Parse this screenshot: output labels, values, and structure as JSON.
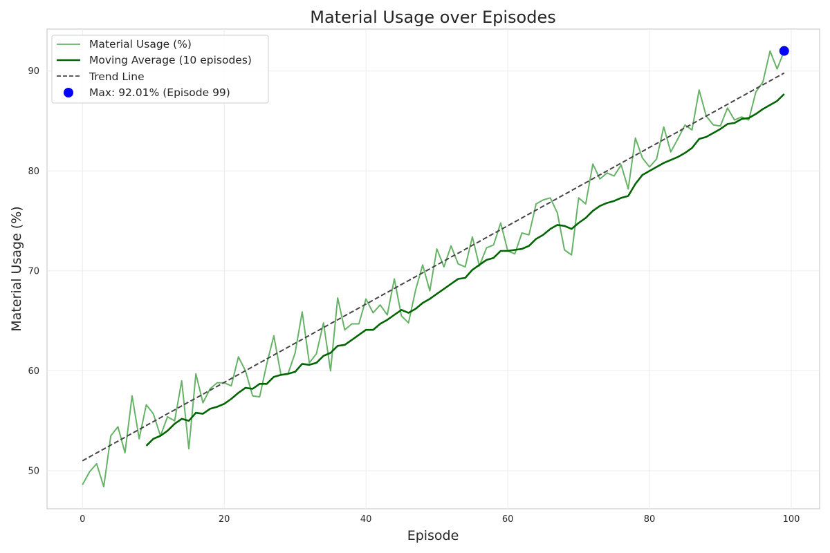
{
  "chart_data": {
    "type": "line",
    "title": "Material Usage over Episodes",
    "xlabel": "Episode",
    "ylabel": "Material Usage (%)",
    "xlim": [
      -5,
      104
    ],
    "ylim": [
      46.2,
      94.2
    ],
    "xticks": [
      0,
      20,
      40,
      60,
      80,
      100
    ],
    "yticks": [
      50,
      60,
      70,
      80,
      90
    ],
    "grid": true,
    "legend_position": "top-left",
    "colors": {
      "raw": "#66b266",
      "moving_average": "#006400",
      "trend": "#444444",
      "max_marker": "#0000ff"
    },
    "series": [
      {
        "name": "Material Usage (%)",
        "x_start": 0,
        "values": [
          48.6,
          49.9,
          50.7,
          48.4,
          53.5,
          54.4,
          51.8,
          57.5,
          53.2,
          56.6,
          55.7,
          53.5,
          55.4,
          55.0,
          59.0,
          52.2,
          59.7,
          56.8,
          58.2,
          58.8,
          58.8,
          58.5,
          61.4,
          60.0,
          57.5,
          57.4,
          60.7,
          63.5,
          59.6,
          59.7,
          61.8,
          65.9,
          60.8,
          61.7,
          64.8,
          60.0,
          67.3,
          64.1,
          64.7,
          64.7,
          67.2,
          65.8,
          66.6,
          65.6,
          69.2,
          65.5,
          64.8,
          68.1,
          70.6,
          68.0,
          72.2,
          70.4,
          72.5,
          70.7,
          70.4,
          73.4,
          70.5,
          72.3,
          72.6,
          74.8,
          72.0,
          71.7,
          73.8,
          73.6,
          76.7,
          77.1,
          77.3,
          75.8,
          72.1,
          71.6,
          77.3,
          76.7,
          80.7,
          79.2,
          79.8,
          79.5,
          80.6,
          78.2,
          83.3,
          81.3,
          80.4,
          81.2,
          84.4,
          81.9,
          83.2,
          84.6,
          84.1,
          88.1,
          85.5,
          84.6,
          84.5,
          86.3,
          85.1,
          85.4,
          85.1,
          87.9,
          88.9,
          92.0,
          90.2,
          92.0
        ]
      },
      {
        "name": "Moving Average (10 episodes)",
        "x_start": 9,
        "values": [
          52.5,
          53.2,
          53.5,
          54.0,
          54.7,
          55.2,
          55.0,
          55.8,
          55.7,
          56.2,
          56.4,
          56.7,
          57.2,
          57.8,
          58.3,
          58.2,
          58.7,
          58.7,
          59.4,
          59.6,
          59.7,
          59.9,
          60.7,
          60.6,
          60.8,
          61.5,
          61.8,
          62.5,
          62.6,
          63.1,
          63.6,
          64.1,
          64.1,
          64.7,
          65.1,
          65.6,
          66.1,
          65.8,
          66.2,
          66.8,
          67.2,
          67.7,
          68.2,
          68.7,
          69.2,
          69.3,
          70.1,
          70.6,
          71.1,
          71.3,
          72.0,
          72.0,
          72.1,
          72.2,
          72.5,
          73.2,
          73.6,
          74.2,
          74.6,
          74.5,
          74.2,
          74.8,
          75.3,
          76.0,
          76.5,
          76.8,
          77.0,
          77.3,
          77.5,
          78.7,
          79.6,
          80.0,
          80.4,
          80.8,
          81.1,
          81.4,
          81.8,
          82.3,
          83.2,
          83.4,
          83.8,
          84.2,
          84.7,
          84.8,
          85.2,
          85.3,
          85.7,
          86.2,
          86.6,
          87.0,
          87.7
        ]
      },
      {
        "name": "Trend Line",
        "x": [
          0,
          99
        ],
        "values": [
          51.0,
          89.8
        ]
      },
      {
        "name": "Max: 92.01% (Episode 99)",
        "type": "scatter",
        "x": [
          99
        ],
        "values": [
          92.01
        ]
      }
    ]
  }
}
